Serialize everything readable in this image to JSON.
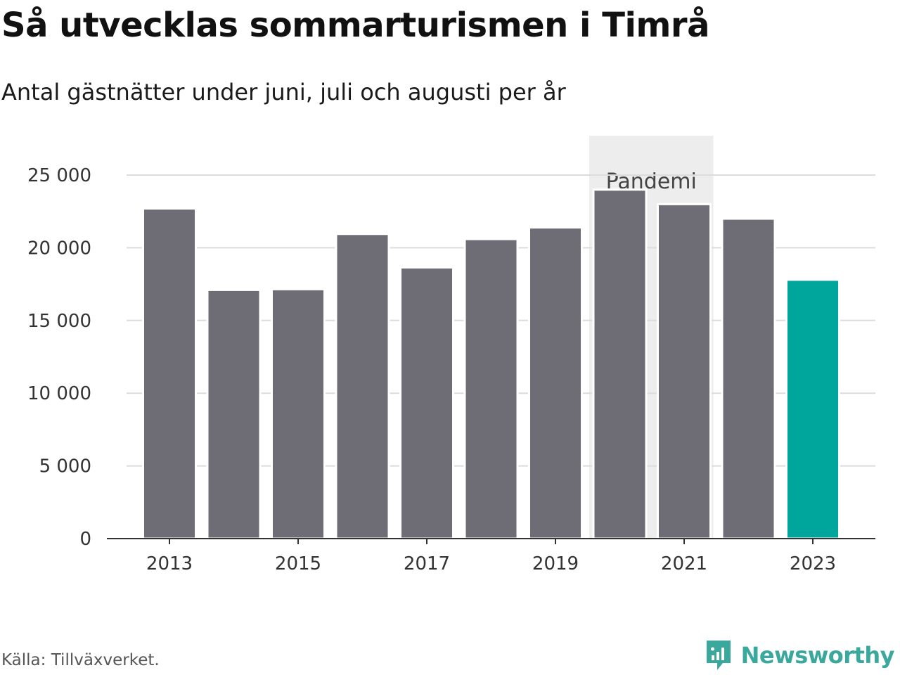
{
  "header": {
    "title": "Så utvecklas sommarturismen i Timrå",
    "subtitle": "Antal gästnätter under juni, juli och augusti per år"
  },
  "chart_data": {
    "type": "bar",
    "categories": [
      "2013",
      "2014",
      "2015",
      "2016",
      "2017",
      "2018",
      "2019",
      "2020",
      "2021",
      "2022",
      "2023"
    ],
    "x_tick_labels": [
      "2013",
      "2015",
      "2017",
      "2019",
      "2021",
      "2023"
    ],
    "values": [
      22700,
      17100,
      17150,
      20950,
      18650,
      20600,
      21400,
      24000,
      23000,
      22000,
      17800
    ],
    "ylim": [
      0,
      27000
    ],
    "y_ticks": [
      0,
      5000,
      10000,
      15000,
      20000,
      25000
    ],
    "y_tick_labels": [
      "0",
      "5 000",
      "10 000",
      "15 000",
      "20 000",
      "25 000"
    ],
    "grid": true,
    "highlight": {
      "category": "2023",
      "color": "#00a69c"
    },
    "bar_color": "#6e6d75",
    "annotation_band": {
      "from": "2020",
      "to": "2021",
      "label": "Pandemi",
      "color": "#ededed"
    }
  },
  "footer": {
    "source": "Källa: Tillväxverket.",
    "brand": "Newsworthy",
    "brand_icon": "newsworthy-logo-icon",
    "brand_color": "#3aa89c"
  }
}
